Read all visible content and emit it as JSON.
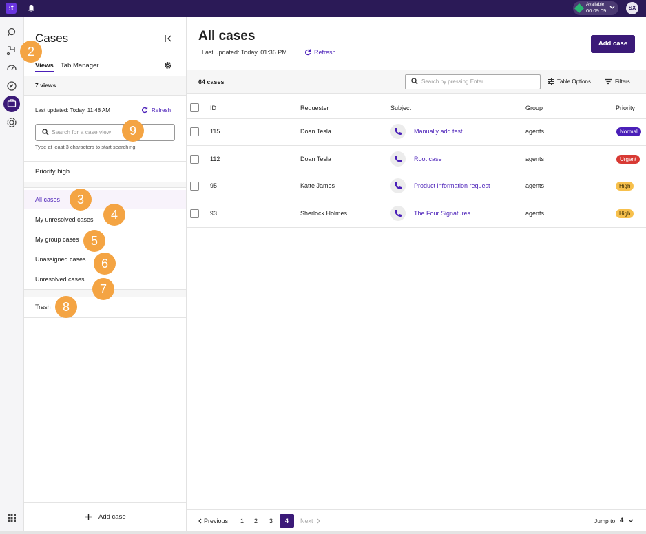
{
  "topbar": {
    "logo": ":t",
    "status": "Available",
    "timer": "00:09:09",
    "avatar": "SX"
  },
  "sidebar": {
    "title": "Cases",
    "tabs": [
      "Views",
      "Tab Manager"
    ],
    "view_count": "7 views",
    "last_updated": "Last updated:  Today, 11:48 AM",
    "refresh": "Refresh",
    "search_placeholder": "Search for a case view",
    "search_hint": "Type at least 3 characters to start searching",
    "custom_views": [
      "Priority high"
    ],
    "default_views": [
      "All cases",
      "My unresolved cases",
      "My group cases",
      "Unassigned cases",
      "Unresolved cases"
    ],
    "trash": "Trash",
    "add_case": "Add case"
  },
  "annotations": [
    "2",
    "3",
    "4",
    "5",
    "6",
    "7",
    "8",
    "9"
  ],
  "main": {
    "title": "All cases",
    "last_updated": "Last updated:  Today, 01:36 PM",
    "refresh": "Refresh",
    "add_case": "Add case",
    "case_count": "64 cases",
    "search_placeholder": "Search by pressing Enter",
    "table_options": "Table Options",
    "filters": "Filters"
  },
  "table": {
    "columns": [
      "ID",
      "Requester",
      "Subject",
      "Group",
      "Priority"
    ],
    "rows": [
      [
        "115",
        "Doan Tesla",
        "Manually add test",
        "agents",
        "Normal"
      ],
      [
        "112",
        "Doan Tesla",
        "Root case",
        "agents",
        "Urgent"
      ],
      [
        "95",
        "Katte James",
        "Product information request",
        "agents",
        "High"
      ],
      [
        "93",
        "Sherlock Holmes",
        "The Four Signatures",
        "agents",
        "High"
      ]
    ]
  },
  "pagination": {
    "previous": "Previous",
    "pages": [
      "1",
      "2",
      "3",
      "4"
    ],
    "next": "Next",
    "jump_label": "Jump to:",
    "jump_value": "4"
  }
}
